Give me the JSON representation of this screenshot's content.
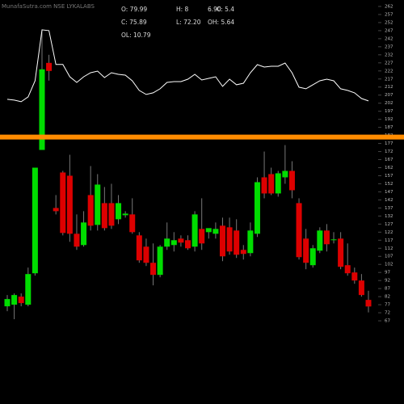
{
  "chart_data": {
    "type": "candlestick",
    "title": "MunafaSutra.com NSE LYKALABS",
    "info": [
      [
        "O: 79.99",
        "H: 8",
        "6.90",
        "C: 5.4"
      ],
      [
        "C: 75.89",
        "L: 72.20",
        "OH: 5.64"
      ],
      [
        "OL: 10.79"
      ]
    ],
    "open": [
      76,
      77,
      82,
      77,
      96.5,
      173,
      227,
      137,
      159,
      157,
      121,
      114,
      145,
      126.5,
      140,
      140,
      130,
      132.5,
      133,
      120,
      113,
      103,
      95.5,
      113,
      114,
      118,
      117,
      113,
      124,
      122,
      121,
      126,
      125,
      123,
      111,
      109,
      121,
      156,
      158,
      146,
      156,
      160,
      140,
      118,
      101.5,
      110.5,
      123,
      117,
      118,
      101.5,
      97,
      92,
      79.99
    ],
    "high": [
      83,
      84,
      84,
      100,
      162,
      247,
      232,
      145,
      160,
      170,
      133,
      135,
      163,
      158,
      150,
      152,
      145,
      135,
      143,
      122,
      118,
      115,
      114,
      128,
      122,
      120,
      120,
      135,
      143,
      124,
      128,
      131,
      131,
      130,
      114,
      128,
      156,
      172,
      162,
      160,
      176,
      166,
      143,
      124,
      114,
      125,
      127,
      122,
      122,
      115,
      100,
      96,
      85.63
    ],
    "low": [
      73,
      68,
      76,
      76,
      95,
      173,
      216,
      133,
      120,
      116,
      111,
      113,
      123,
      123,
      123,
      124,
      127,
      131,
      121,
      103,
      101,
      89,
      94,
      111,
      110,
      113,
      111,
      110,
      111,
      118,
      118,
      104,
      108,
      106,
      105,
      107,
      119,
      143,
      145,
      144,
      152,
      143,
      105,
      99,
      100,
      109,
      110,
      115,
      99,
      95,
      90,
      82,
      72.2
    ],
    "close": [
      80.5,
      83,
      78,
      96,
      162,
      223,
      222,
      135,
      121.5,
      121,
      113,
      128,
      126,
      151.5,
      124.5,
      126,
      140,
      133.5,
      122,
      104.5,
      103,
      95.5,
      113,
      118,
      117,
      115.5,
      112,
      133,
      115,
      124.5,
      124,
      107,
      110,
      108,
      108.5,
      123,
      153,
      146,
      146,
      158.5,
      160,
      148,
      106.5,
      103,
      112,
      123,
      114.5,
      117.5,
      100.5,
      96.5,
      92,
      83,
      75.89
    ],
    "up_color": "#00dd00",
    "down_color": "#dd0000",
    "line": {
      "color": "#ffffff",
      "values": [
        204.4,
        203.9,
        202.9,
        205.9,
        215.9,
        247.5,
        247,
        226,
        226,
        218.4,
        214.9,
        218.4,
        220.9,
        221.9,
        217.9,
        220.9,
        219.9,
        219.4,
        215.9,
        209.9,
        207.4,
        208.4,
        210.9,
        214.9,
        215.4,
        215.4,
        216.9,
        219.9,
        216.4,
        217.4,
        218.4,
        212.4,
        216.9,
        213.4,
        214.4,
        220.9,
        225.9,
        224.4,
        224.9,
        224.9,
        226.9,
        220.9,
        211.9,
        210.9,
        213.4,
        215.9,
        216.9,
        215.9,
        210.9,
        209.9,
        208.4,
        204.9,
        203.4
      ]
    },
    "hline": {
      "value": 181,
      "color": "#ff8c00"
    },
    "ylim": [
      15.4,
      266
    ],
    "yticks": [
      262,
      257,
      252,
      247,
      242,
      237,
      232,
      227,
      222,
      217,
      212,
      207,
      202,
      197,
      192,
      187,
      182,
      177,
      172,
      167,
      162,
      157,
      152,
      147,
      142,
      137,
      132,
      127,
      122,
      117,
      112,
      107,
      102,
      97,
      92,
      87,
      82,
      77,
      72,
      67
    ]
  }
}
